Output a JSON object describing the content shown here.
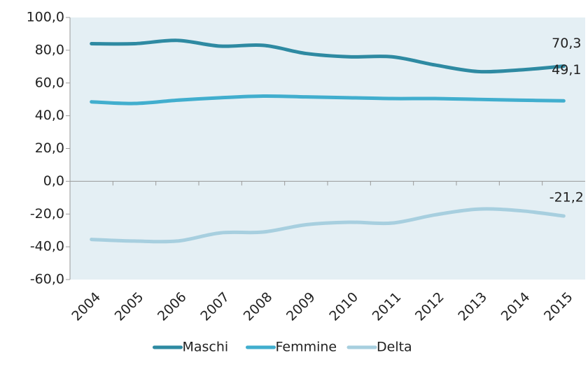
{
  "chart_data": {
    "type": "line",
    "categories": [
      "2004",
      "2005",
      "2006",
      "2007",
      "2008",
      "2009",
      "2010",
      "2011",
      "2012",
      "2013",
      "2014",
      "2015"
    ],
    "series": [
      {
        "name": "Maschi",
        "color": "#2e8aa2",
        "values": [
          84,
          84,
          86,
          82.5,
          83,
          78,
          76,
          76,
          71,
          67,
          68,
          70.3
        ],
        "value_labels": [
          null,
          null,
          null,
          null,
          null,
          null,
          null,
          null,
          null,
          null,
          null,
          "70,3"
        ]
      },
      {
        "name": "Femmine",
        "color": "#41aece",
        "values": [
          48.5,
          47.5,
          49.5,
          51,
          52,
          51.5,
          51,
          50.5,
          50.5,
          50,
          49.5,
          49.1
        ],
        "value_labels": [
          null,
          null,
          null,
          null,
          null,
          null,
          null,
          null,
          null,
          null,
          null,
          "49,1"
        ]
      },
      {
        "name": "Delta",
        "color": "#a7cfdf",
        "values": [
          -35.5,
          -36.5,
          -36.5,
          -31.5,
          -31,
          -26.5,
          -25,
          -25.5,
          -20.5,
          -17,
          -18,
          -21.2
        ],
        "value_labels": [
          null,
          null,
          null,
          null,
          null,
          null,
          null,
          null,
          null,
          null,
          null,
          "-21,2"
        ]
      }
    ],
    "ylim": [
      -60,
      100
    ],
    "yticks": [
      {
        "value": -60,
        "label": "-60,0"
      },
      {
        "value": -40,
        "label": "-40,0"
      },
      {
        "value": -20,
        "label": "-20,0"
      },
      {
        "value": 0,
        "label": "0,0"
      },
      {
        "value": 20,
        "label": "20,0"
      },
      {
        "value": 40,
        "label": "40,0"
      },
      {
        "value": 60,
        "label": "60,0"
      },
      {
        "value": 80,
        "label": "80,0"
      },
      {
        "value": 100,
        "label": "100,0"
      }
    ],
    "grid": false,
    "legend": "bottom"
  }
}
